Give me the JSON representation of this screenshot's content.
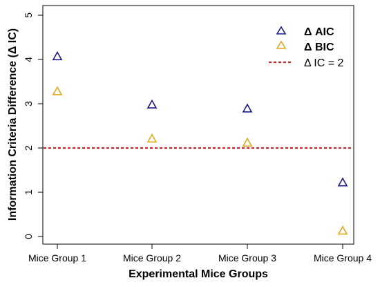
{
  "chart_data": {
    "type": "scatter",
    "categories": [
      "Mice Group 1",
      "Mice Group 2",
      "Mice Group 3",
      "Mice Group 4"
    ],
    "series": [
      {
        "name": "Δ AIC",
        "marker": "triangle",
        "color": "#1a1a8c",
        "values": [
          4.07,
          2.98,
          2.89,
          1.22
        ]
      },
      {
        "name": "Δ BIC",
        "marker": "triangle",
        "color": "#e0a81c",
        "values": [
          3.28,
          2.21,
          2.12,
          0.13
        ]
      }
    ],
    "reference_line": {
      "name": "Δ IC = 2",
      "y": 2,
      "color": "#c62828",
      "style": "dashed"
    },
    "xlabel": "Experimental Mice Groups",
    "ylabel": "Information Criteria Difference (Δ IC)",
    "ylim": [
      0,
      5
    ],
    "yticks": [
      0,
      1,
      2,
      3,
      4,
      5
    ],
    "grid": false,
    "legend_position": "top-right"
  }
}
